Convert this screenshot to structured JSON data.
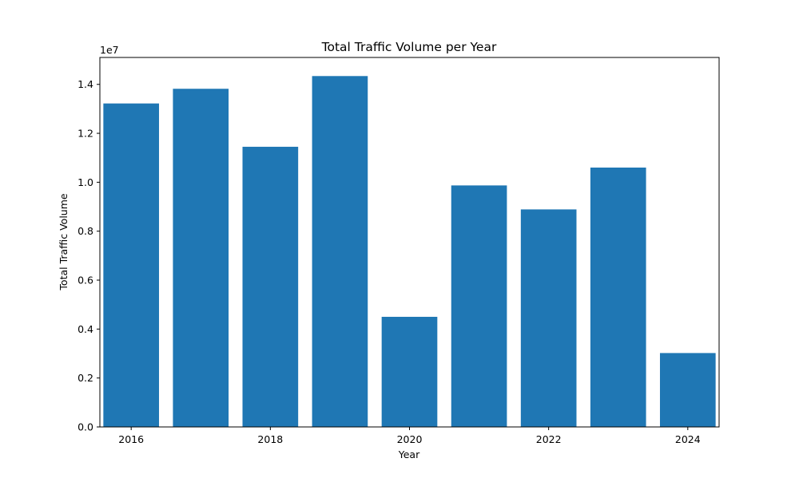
{
  "chart_data": {
    "type": "bar",
    "title": "Total Traffic Volume per Year",
    "xlabel": "Year",
    "ylabel": "Total Traffic Volume",
    "y_offset_label": "1e7",
    "x": [
      2016,
      2017,
      2018,
      2019,
      2020,
      2021,
      2022,
      2023,
      2024
    ],
    "values": [
      13220000,
      13820000,
      11450000,
      14340000,
      4500000,
      9870000,
      8890000,
      10600000,
      3020000
    ],
    "xlim": [
      2015.55,
      2024.45
    ],
    "ylim": [
      0,
      15100000
    ],
    "x_ticks": [
      2016,
      2018,
      2020,
      2022,
      2024
    ],
    "x_tick_labels": [
      "2016",
      "2018",
      "2020",
      "2022",
      "2024"
    ],
    "y_ticks": [
      0,
      2000000,
      4000000,
      6000000,
      8000000,
      10000000,
      12000000,
      14000000
    ],
    "y_tick_labels": [
      "0.0",
      "0.2",
      "0.4",
      "0.6",
      "0.8",
      "1.0",
      "1.2",
      "1.4"
    ],
    "bar_color": "#1f77b4",
    "grid": false,
    "legend": "none"
  }
}
